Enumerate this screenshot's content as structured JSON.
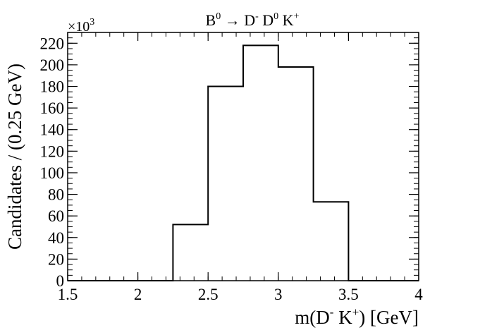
{
  "chart_data": {
    "type": "bar",
    "title": {
      "main": "B",
      "sup1": "0",
      "arrow": " → ",
      "d": "D",
      "sup2": "-",
      "d0": " D",
      "sup3": "0",
      "k": " K",
      "sup4": "+"
    },
    "xlabel": {
      "a": "m(D",
      "sup1": "-",
      "b": " K",
      "sup2": "+",
      "c": ") [GeV]"
    },
    "ylabel": "Candidates / (0.25 GeV)",
    "multiplier": {
      "base": "×10",
      "exp": "3"
    },
    "xlim": [
      1.5,
      4.0
    ],
    "ylim": [
      0,
      230
    ],
    "bin_edges": [
      1.5,
      1.75,
      2.0,
      2.25,
      2.5,
      2.75,
      3.0,
      3.25,
      3.5,
      3.75,
      4.0
    ],
    "values": [
      0,
      0,
      0,
      52,
      180,
      218,
      198,
      73,
      0,
      0
    ],
    "x_ticks": [
      {
        "value": 1.5,
        "label": "1.5"
      },
      {
        "value": 2.0,
        "label": "2"
      },
      {
        "value": 2.5,
        "label": "2.5"
      },
      {
        "value": 3.0,
        "label": "3"
      },
      {
        "value": 3.5,
        "label": "3.5"
      },
      {
        "value": 4.0,
        "label": "4"
      }
    ],
    "y_ticks": [
      {
        "value": 0,
        "label": "0"
      },
      {
        "value": 20,
        "label": "20"
      },
      {
        "value": 40,
        "label": "40"
      },
      {
        "value": 60,
        "label": "60"
      },
      {
        "value": 80,
        "label": "80"
      },
      {
        "value": 100,
        "label": "100"
      },
      {
        "value": 120,
        "label": "120"
      },
      {
        "value": 140,
        "label": "140"
      },
      {
        "value": 160,
        "label": "160"
      },
      {
        "value": 180,
        "label": "180"
      },
      {
        "value": 200,
        "label": "200"
      },
      {
        "value": 220,
        "label": "220"
      }
    ],
    "grid": false,
    "legend": "none"
  }
}
